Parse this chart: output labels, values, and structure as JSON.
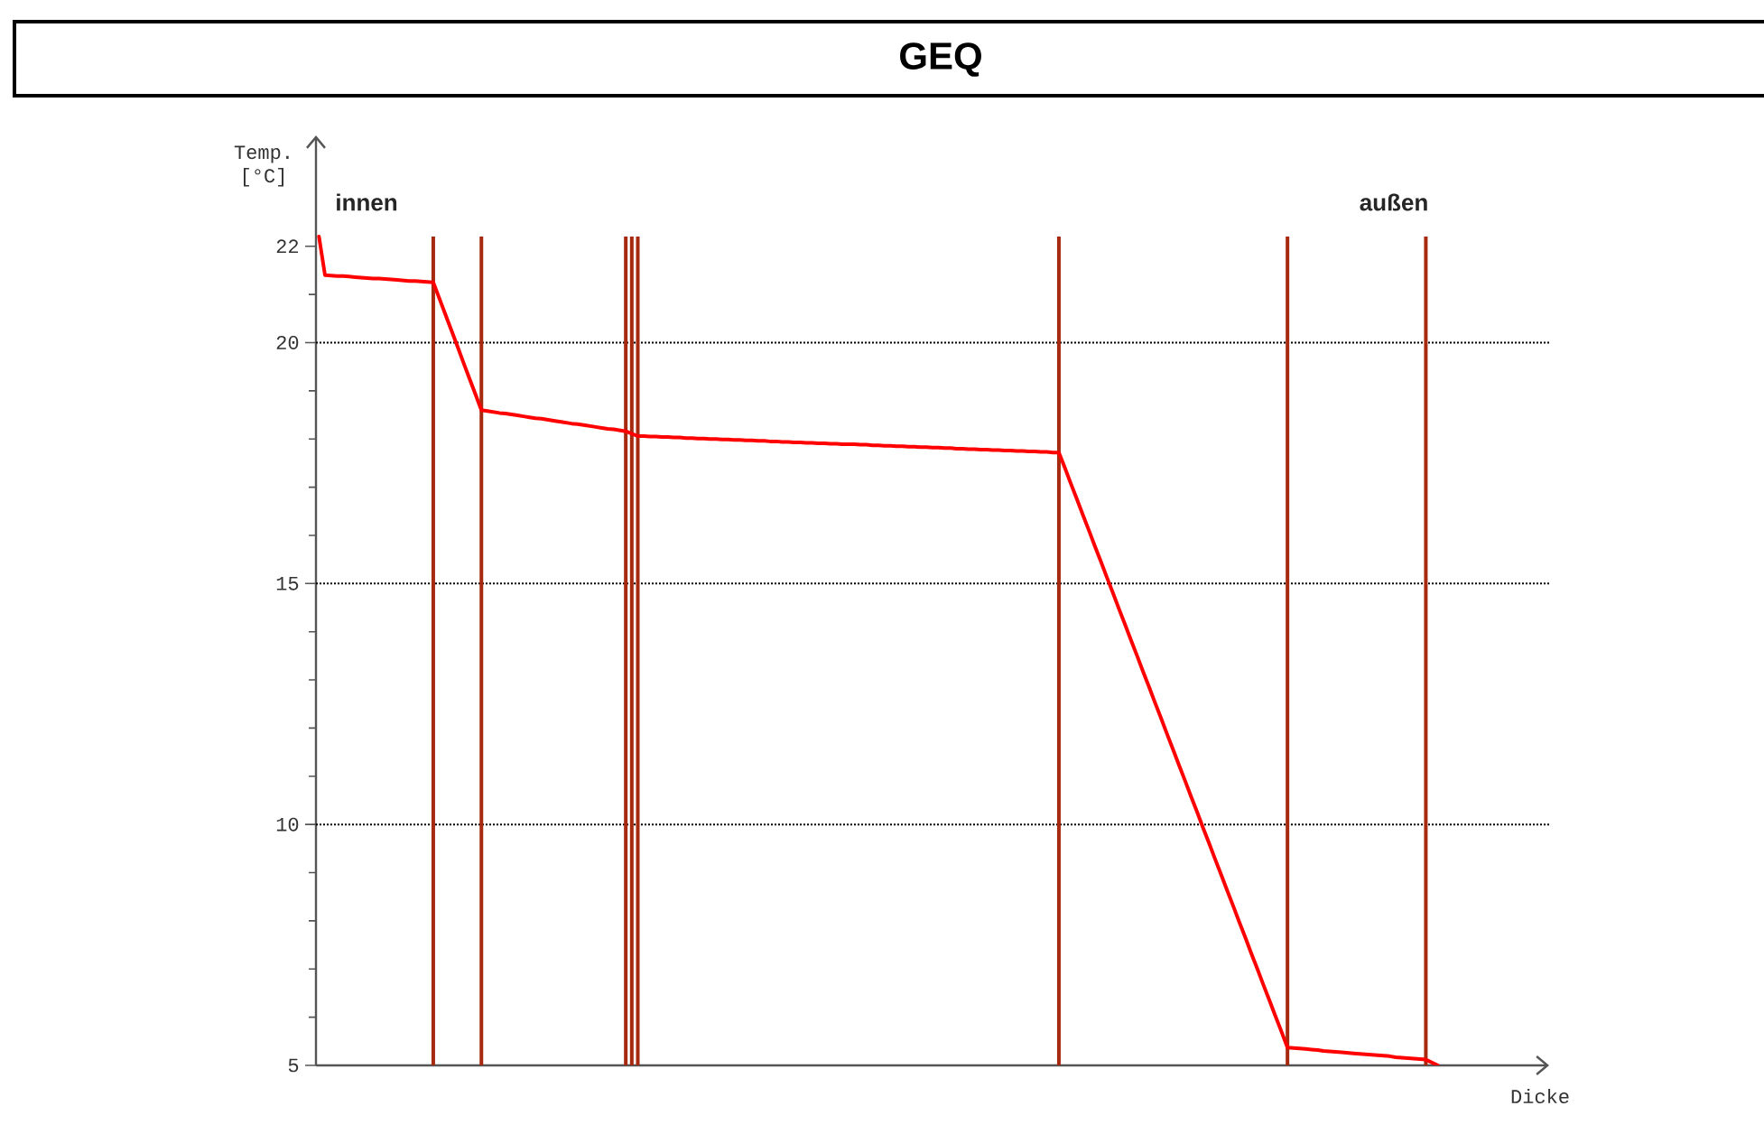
{
  "chart_data": {
    "type": "line",
    "title": "GEQ",
    "xlabel": "Dicke",
    "ylabel": "Temp. [°C]",
    "annotations": [
      "innen",
      "außen"
    ],
    "categories": [
      null,
      null,
      null,
      null,
      null,
      null,
      null,
      null,
      null,
      null,
      null,
      null,
      null,
      null,
      null,
      null,
      null,
      null,
      null,
      null,
      null,
      null,
      null,
      null,
      null,
      null,
      null,
      null,
      null,
      null,
      null,
      null,
      null,
      null,
      null,
      null,
      null,
      null,
      null,
      null,
      null,
      null,
      null,
      null,
      null,
      null,
      null,
      null,
      null,
      null,
      null,
      null,
      null,
      null,
      null,
      null,
      null,
      null,
      null,
      null,
      null,
      null,
      null,
      null,
      null,
      null,
      null,
      null,
      null,
      null,
      null,
      null,
      null,
      null,
      null,
      null,
      null,
      null,
      null,
      null,
      null,
      null,
      null,
      null,
      null,
      null,
      null,
      null,
      null,
      null,
      null,
      null,
      null,
      null,
      null,
      null,
      null,
      null,
      null,
      null,
      null,
      null,
      null,
      null,
      null,
      null,
      null,
      null,
      null,
      null,
      null,
      null,
      null,
      null,
      null,
      null,
      null,
      null,
      null,
      null,
      null,
      null,
      null,
      null,
      null,
      null,
      null,
      null,
      null,
      null,
      null,
      null,
      null,
      null,
      null,
      null,
      null,
      null,
      null,
      null,
      null,
      null,
      null,
      null,
      null,
      null,
      null,
      null,
      null,
      null,
      null,
      null,
      null,
      null,
      null,
      null,
      null,
      null,
      null,
      null,
      null,
      null,
      null,
      null,
      null,
      null,
      null,
      null,
      null,
      null,
      null,
      null,
      null,
      null,
      null,
      null,
      null,
      null,
      null,
      null,
      null,
      null,
      null,
      null,
      null,
      null,
      null,
      null,
      null,
      null,
      null,
      null,
      null,
      null,
      null,
      null,
      null,
      null,
      null,
      null,
      null,
      null,
      null,
      null,
      null
    ],
    "series": [
      {
        "type": "bar",
        "color": "#a52a10",
        "values": [
          null,
          null,
          null,
          null,
          null,
          null,
          null,
          null,
          null,
          null,
          null,
          null,
          null,
          null,
          null,
          null,
          null,
          null,
          null,
          22.2,
          null,
          null,
          null,
          null,
          null,
          null,
          null,
          22.2,
          null,
          null,
          null,
          null,
          null,
          null,
          null,
          null,
          null,
          null,
          null,
          null,
          null,
          null,
          null,
          null,
          null,
          null,
          null,
          null,
          null,
          null,
          null,
          22.2,
          22.2,
          22.2,
          null,
          null,
          null,
          null,
          null,
          null,
          null,
          null,
          null,
          null,
          null,
          null,
          null,
          null,
          null,
          null,
          null,
          null,
          null,
          null,
          null,
          null,
          null,
          null,
          null,
          null,
          null,
          null,
          null,
          null,
          null,
          null,
          null,
          null,
          null,
          null,
          null,
          null,
          null,
          null,
          null,
          null,
          null,
          null,
          null,
          null,
          null,
          null,
          null,
          null,
          null,
          null,
          null,
          null,
          null,
          null,
          null,
          null,
          null,
          null,
          null,
          null,
          null,
          null,
          null,
          null,
          null,
          null,
          null,
          22.2,
          null,
          null,
          null,
          null,
          null,
          null,
          null,
          null,
          null,
          null,
          null,
          null,
          null,
          null,
          null,
          null,
          null,
          null,
          null,
          null,
          null,
          null,
          null,
          null,
          null,
          null,
          null,
          null,
          null,
          null,
          null,
          null,
          null,
          null,
          null,
          null,
          null,
          22.2,
          null,
          null,
          null,
          null,
          null,
          null,
          null,
          null,
          null,
          null,
          null,
          null,
          null,
          null,
          null,
          null,
          null,
          null,
          null,
          null,
          null,
          null,
          22.2,
          null,
          null,
          null,
          null,
          null,
          null,
          null,
          null,
          null,
          null,
          null,
          null,
          null,
          null,
          null,
          null,
          null,
          null,
          null,
          null
        ]
      },
      {
        "color": "#ff0000",
        "values": [
          22.2,
          21.4,
          21.39,
          21.38,
          21.38,
          21.37,
          21.36,
          21.35,
          21.34,
          21.33,
          21.33,
          21.32,
          21.31,
          21.3,
          21.29,
          21.28,
          21.28,
          21.27,
          21.26,
          21.25,
          20.92,
          20.59,
          20.26,
          19.93,
          19.59,
          19.26,
          18.93,
          18.6,
          18.58,
          18.56,
          18.54,
          18.53,
          18.51,
          18.49,
          18.47,
          18.45,
          18.43,
          18.42,
          18.4,
          18.38,
          18.36,
          18.34,
          18.32,
          18.31,
          18.29,
          18.27,
          18.25,
          18.23,
          18.21,
          18.2,
          18.18,
          18.16,
          18.11,
          18.06,
          18.06,
          18.05,
          18.05,
          18.04,
          18.04,
          18.03,
          18.03,
          18.02,
          18.02,
          18.01,
          18.01,
          18.0,
          18.0,
          17.99,
          17.99,
          17.98,
          17.98,
          17.97,
          17.97,
          17.96,
          17.96,
          17.95,
          17.95,
          17.94,
          17.94,
          17.93,
          17.93,
          17.92,
          17.92,
          17.91,
          17.91,
          17.9,
          17.9,
          17.89,
          17.89,
          17.89,
          17.88,
          17.88,
          17.87,
          17.87,
          17.86,
          17.86,
          17.85,
          17.85,
          17.84,
          17.84,
          17.83,
          17.83,
          17.82,
          17.82,
          17.81,
          17.81,
          17.8,
          17.8,
          17.79,
          17.79,
          17.78,
          17.78,
          17.77,
          17.77,
          17.76,
          17.76,
          17.75,
          17.75,
          17.74,
          17.74,
          17.73,
          17.73,
          17.72,
          17.72,
          17.4,
          17.07,
          16.75,
          16.42,
          16.1,
          15.77,
          15.45,
          15.12,
          14.8,
          14.47,
          14.15,
          13.82,
          13.5,
          13.17,
          12.85,
          12.52,
          12.2,
          11.87,
          11.55,
          11.22,
          10.9,
          10.57,
          10.25,
          9.92,
          9.6,
          9.27,
          8.95,
          8.62,
          8.3,
          7.97,
          7.65,
          7.32,
          7.0,
          6.67,
          6.35,
          6.02,
          5.7,
          5.37,
          5.36,
          5.35,
          5.34,
          5.33,
          5.32,
          5.3,
          5.29,
          5.28,
          5.27,
          5.26,
          5.25,
          5.24,
          5.23,
          5.22,
          5.21,
          5.2,
          5.19,
          5.17,
          5.16,
          5.15,
          5.14,
          5.13,
          5.12,
          5.06,
          5.0,
          null,
          null,
          null,
          null,
          null,
          null,
          null,
          null,
          null,
          null,
          null,
          null,
          null,
          null,
          null,
          null,
          null,
          null
        ]
      }
    ],
    "ylim": [
      5,
      24.3
    ],
    "yticks": [
      5,
      {
        "value": 6,
        "label": null
      },
      {
        "value": 7,
        "label": null
      },
      {
        "value": 8,
        "label": null
      },
      {
        "value": 9,
        "label": null
      },
      10,
      {
        "value": 11,
        "label": null
      },
      {
        "value": 12,
        "label": null
      },
      {
        "value": 13,
        "label": null
      },
      {
        "value": 14,
        "label": null
      },
      15,
      {
        "value": 16,
        "label": null
      },
      {
        "value": 17,
        "label": null
      },
      {
        "value": 18,
        "label": null
      },
      {
        "value": 19,
        "label": null
      },
      20,
      {
        "value": 21,
        "label": null
      },
      22
    ],
    "tick_labels": "y",
    "ref_lines": [
      {
        "axis": "y",
        "value": 10,
        "color": "#000000",
        "line_style": "dotted"
      },
      {
        "axis": "y",
        "value": 15,
        "color": "#000000",
        "line_style": "dotted"
      },
      {
        "axis": "y",
        "value": 20,
        "color": "#000000",
        "line_style": "dotted"
      }
    ],
    "marker": "none",
    "line_style": "solid"
  }
}
